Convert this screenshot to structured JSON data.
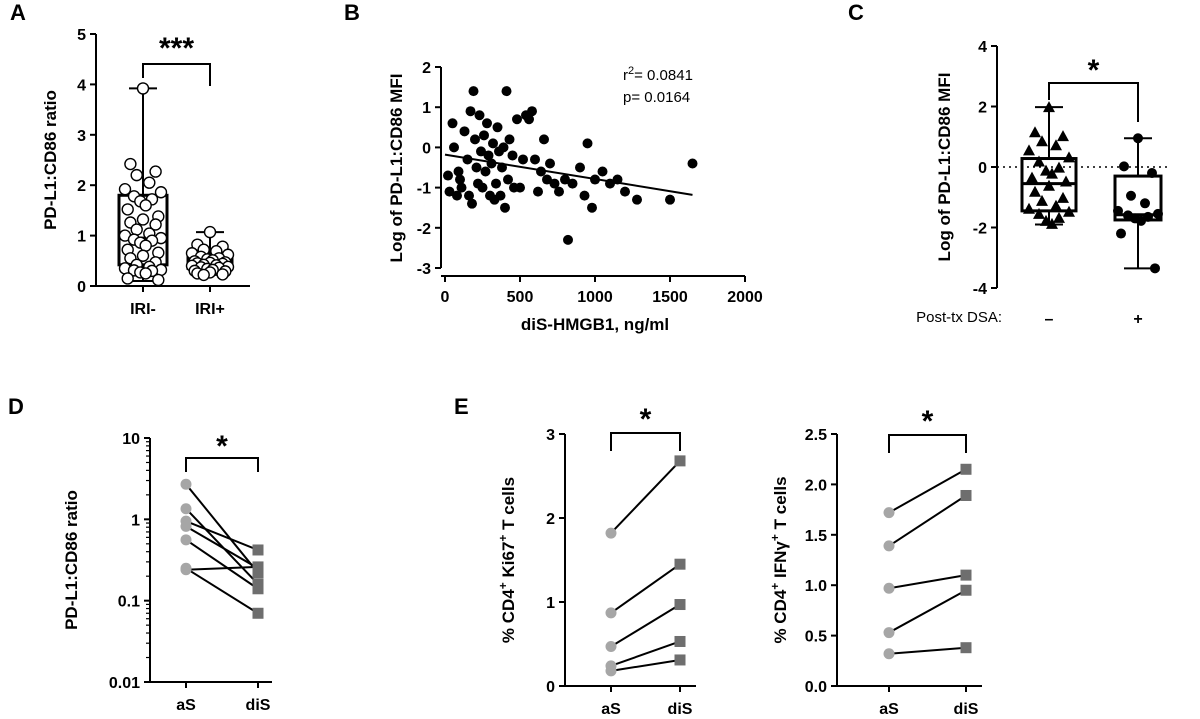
{
  "colors": {
    "black": "#000000",
    "grey": "#a6a6a6",
    "darkgrey": "#6e6e6e"
  },
  "chart_data": [
    {
      "panel": "A",
      "type": "box",
      "ylabel": "PD-L1:CD86 ratio",
      "ylim": [
        0,
        5
      ],
      "yticks": [
        "0",
        "1",
        "2",
        "3",
        "4",
        "5"
      ],
      "categories": [
        "IRI-",
        "IRI+"
      ],
      "boxes": [
        {
          "min": 0.1,
          "q1": 0.42,
          "median": 0.95,
          "q3": 1.8,
          "max": 3.92
        },
        {
          "min": 0.22,
          "q1": 0.35,
          "median": 0.45,
          "q3": 0.64,
          "max": 1.07
        }
      ],
      "points": [
        [
          3.92,
          2.42,
          2.27,
          2.2,
          2.05,
          1.92,
          1.86,
          1.78,
          1.72,
          1.68,
          1.6,
          1.52,
          1.38,
          1.32,
          1.26,
          1.22,
          1.12,
          1.04,
          1.0,
          0.95,
          0.92,
          0.9,
          0.86,
          0.8,
          0.72,
          0.66,
          0.6,
          0.55,
          0.47,
          0.42,
          0.38,
          0.35,
          0.32,
          0.31,
          0.3,
          0.27,
          0.25,
          0.15,
          0.12
        ],
        [
          1.07,
          0.82,
          0.78,
          0.72,
          0.69,
          0.65,
          0.62,
          0.58,
          0.55,
          0.53,
          0.51,
          0.49,
          0.47,
          0.46,
          0.45,
          0.44,
          0.42,
          0.41,
          0.4,
          0.38,
          0.37,
          0.36,
          0.34,
          0.32,
          0.3,
          0.29,
          0.27,
          0.25,
          0.23,
          0.22
        ]
      ],
      "significance": "***"
    },
    {
      "panel": "B",
      "type": "scatter",
      "xlabel": "diS-HMGB1, ng/ml",
      "ylabel": "Log of PD-L1:CD86 MFI",
      "xlim": [
        0,
        2000
      ],
      "ylim": [
        -3,
        2
      ],
      "xticks": [
        "0",
        "500",
        "1000",
        "1500",
        "2000"
      ],
      "yticks": [
        "-3",
        "-2",
        "-1",
        "0",
        "1",
        "2"
      ],
      "points": [
        [
          20,
          -0.7
        ],
        [
          30,
          -1.1
        ],
        [
          50,
          0.6
        ],
        [
          60,
          0.0
        ],
        [
          80,
          -1.2
        ],
        [
          90,
          -0.6
        ],
        [
          100,
          -0.8
        ],
        [
          110,
          -1.0
        ],
        [
          130,
          0.4
        ],
        [
          150,
          -0.3
        ],
        [
          160,
          -1.2
        ],
        [
          170,
          0.9
        ],
        [
          180,
          -1.4
        ],
        [
          190,
          1.4
        ],
        [
          200,
          0.2
        ],
        [
          210,
          -0.5
        ],
        [
          220,
          -0.9
        ],
        [
          230,
          0.8
        ],
        [
          240,
          -0.1
        ],
        [
          250,
          -1.0
        ],
        [
          260,
          0.3
        ],
        [
          270,
          -0.6
        ],
        [
          280,
          0.6
        ],
        [
          290,
          -0.2
        ],
        [
          300,
          -1.2
        ],
        [
          310,
          -0.4
        ],
        [
          320,
          0.1
        ],
        [
          330,
          -1.3
        ],
        [
          340,
          -0.9
        ],
        [
          350,
          0.5
        ],
        [
          360,
          -0.1
        ],
        [
          370,
          -1.2
        ],
        [
          380,
          -0.5
        ],
        [
          390,
          0.0
        ],
        [
          400,
          -1.5
        ],
        [
          410,
          1.4
        ],
        [
          420,
          -0.8
        ],
        [
          430,
          0.2
        ],
        [
          450,
          -0.2
        ],
        [
          460,
          -1.0
        ],
        [
          480,
          0.7
        ],
        [
          500,
          -1.0
        ],
        [
          520,
          -0.3
        ],
        [
          540,
          0.8
        ],
        [
          560,
          0.7
        ],
        [
          580,
          0.9
        ],
        [
          600,
          -0.3
        ],
        [
          620,
          -1.1
        ],
        [
          640,
          -0.6
        ],
        [
          660,
          0.2
        ],
        [
          680,
          -0.8
        ],
        [
          700,
          -0.4
        ],
        [
          730,
          -0.9
        ],
        [
          760,
          -1.1
        ],
        [
          800,
          -0.8
        ],
        [
          820,
          -2.3
        ],
        [
          850,
          -0.9
        ],
        [
          900,
          -0.5
        ],
        [
          930,
          -1.2
        ],
        [
          950,
          0.1
        ],
        [
          980,
          -1.5
        ],
        [
          1000,
          -0.8
        ],
        [
          1050,
          -0.6
        ],
        [
          1100,
          -0.9
        ],
        [
          1150,
          -0.8
        ],
        [
          1200,
          -1.1
        ],
        [
          1280,
          -1.3
        ],
        [
          1500,
          -1.3
        ],
        [
          1650,
          -0.4
        ]
      ],
      "fit": {
        "x": [
          0,
          1650
        ],
        "y": [
          -0.18,
          -1.18
        ]
      },
      "annotations": {
        "r2_prefix": "r",
        "r2_sup": "2",
        "r2_value": "= 0.0841",
        "p": "p= 0.0164"
      }
    },
    {
      "panel": "C",
      "type": "box",
      "ylabel": "Log of PD-L1:CD86 MFI",
      "ylim": [
        -4,
        4
      ],
      "yticks": [
        "-4",
        "-2",
        "0",
        "2",
        "4"
      ],
      "group_label": "Post-tx DSA:",
      "categories": [
        "–",
        "+"
      ],
      "boxes": [
        {
          "min": -1.9,
          "q1": -1.45,
          "median": -0.55,
          "q3": 0.28,
          "max": 1.98
        },
        {
          "min": -3.35,
          "q1": -1.75,
          "median": -1.58,
          "q3": -0.3,
          "max": 0.95
        }
      ],
      "points": [
        [
          1.98,
          1.15,
          1.02,
          0.85,
          0.72,
          0.55,
          0.32,
          0.18,
          -0.02,
          -0.12,
          -0.22,
          -0.35,
          -0.48,
          -0.62,
          -0.82,
          -1.02,
          -1.12,
          -1.28,
          -1.38,
          -1.48,
          -1.55,
          -1.68,
          -1.78,
          -1.88
        ],
        [
          0.95,
          0.02,
          -0.2,
          -0.95,
          -1.2,
          -1.45,
          -1.55,
          -1.6,
          -1.65,
          -1.7,
          -1.78,
          -2.2,
          -3.35
        ]
      ],
      "significance": "*"
    },
    {
      "panel": "D",
      "type": "paired-log",
      "ylabel": "PD-L1:CD86 ratio",
      "yscale": "log",
      "ylim": [
        0.01,
        10
      ],
      "yticks": [
        "0.01",
        "0.1",
        "1",
        "10"
      ],
      "categories": [
        "aS",
        "diS"
      ],
      "pairs": [
        [
          2.7,
          0.22
        ],
        [
          1.35,
          0.16
        ],
        [
          0.95,
          0.42
        ],
        [
          0.82,
          0.25
        ],
        [
          0.56,
          0.14
        ],
        [
          0.24,
          0.26
        ],
        [
          0.25,
          0.07
        ]
      ],
      "significance": "*"
    },
    {
      "panel": "E",
      "type": "paired",
      "ylabel_pre": "% CD4",
      "ylabel_sup1": "+",
      "ylabel_mid": " Ki67",
      "ylabel_sup2": "+",
      "ylabel_post": " T cells",
      "ylim": [
        0,
        3
      ],
      "yticks": [
        "0",
        "1",
        "2",
        "3"
      ],
      "categories": [
        "aS",
        "diS"
      ],
      "pairs": [
        [
          1.82,
          2.68
        ],
        [
          0.87,
          1.45
        ],
        [
          0.47,
          0.97
        ],
        [
          0.24,
          0.53
        ],
        [
          0.18,
          0.31
        ]
      ],
      "significance": "*"
    },
    {
      "panel": "",
      "type": "paired",
      "ylabel_pre": "% CD4",
      "ylabel_sup1": "+",
      "ylabel_mid": " IFNγ",
      "ylabel_sup2": "+",
      "ylabel_post": " T cells",
      "ylim": [
        0,
        2.5
      ],
      "yticks": [
        "0.0",
        "0.5",
        "1.0",
        "1.5",
        "2.0",
        "2.5"
      ],
      "categories": [
        "aS",
        "diS"
      ],
      "pairs": [
        [
          1.72,
          2.15
        ],
        [
          1.39,
          1.89
        ],
        [
          0.97,
          1.1
        ],
        [
          0.53,
          0.95
        ],
        [
          0.32,
          0.38
        ]
      ],
      "significance": "*"
    }
  ]
}
